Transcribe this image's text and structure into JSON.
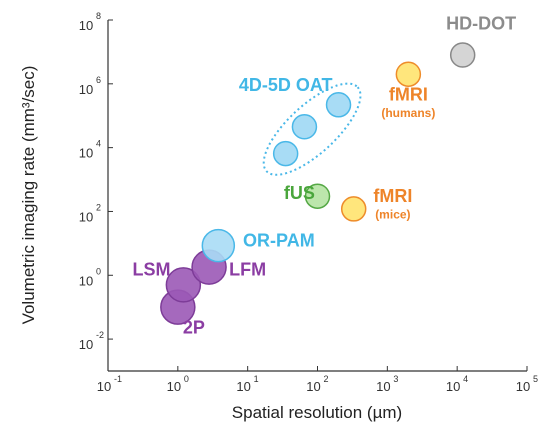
{
  "chart_data": {
    "type": "scatter",
    "scale": "log",
    "xlabel": "Spatial resolution (µm)",
    "ylabel": "Volumetric imaging rate (mm³/sec)",
    "xlim": [
      0.1,
      100000
    ],
    "ylim": [
      0.001,
      100000000
    ],
    "x_ticks": [
      {
        "base": "10",
        "exp": "-1",
        "value": 0.1
      },
      {
        "base": "10",
        "exp": "0",
        "value": 1
      },
      {
        "base": "10",
        "exp": "1",
        "value": 10
      },
      {
        "base": "10",
        "exp": "2",
        "value": 100
      },
      {
        "base": "10",
        "exp": "3",
        "value": 1000
      },
      {
        "base": "10",
        "exp": "4",
        "value": 10000
      },
      {
        "base": "10",
        "exp": "5",
        "value": 100000
      }
    ],
    "y_ticks": [
      {
        "base": "10",
        "exp": "-2",
        "value": 0.01
      },
      {
        "base": "10",
        "exp": "0",
        "value": 1
      },
      {
        "base": "10",
        "exp": "2",
        "value": 100
      },
      {
        "base": "10",
        "exp": "4",
        "value": 10000
      },
      {
        "base": "10",
        "exp": "6",
        "value": 1000000
      },
      {
        "base": "10",
        "exp": "8",
        "value": 100000000
      }
    ],
    "points": [
      {
        "id": "2p",
        "x": 1.0,
        "y": 0.1,
        "r": 17,
        "fill": "#9b59b6",
        "stroke": "#7d3c98"
      },
      {
        "id": "lsm",
        "x": 1.2,
        "y": 0.5,
        "r": 17,
        "fill": "#9b59b6",
        "stroke": "#7d3c98"
      },
      {
        "id": "lfm",
        "x": 2.8,
        "y": 1.8,
        "r": 17,
        "fill": "#9b59b6",
        "stroke": "#7d3c98"
      },
      {
        "id": "or-pam",
        "x": 3.8,
        "y": 8.5,
        "r": 16,
        "fill": "#a8dcf5",
        "stroke": "#4ab8e8"
      },
      {
        "id": "fus",
        "x": 100,
        "y": 300,
        "r": 12,
        "fill": "#b5e3a3",
        "stroke": "#55a845"
      },
      {
        "id": "fmri-mice",
        "x": 330,
        "y": 120,
        "r": 12,
        "fill": "#ffe36e",
        "stroke": "#ee8c2a"
      },
      {
        "id": "fmri-humans",
        "x": 2000,
        "y": 2000000,
        "r": 12,
        "fill": "#ffe36e",
        "stroke": "#ee8c2a"
      },
      {
        "id": "hd-dot",
        "x": 12000,
        "y": 8000000,
        "r": 12,
        "fill": "#d0d0d0",
        "stroke": "#888888"
      }
    ],
    "oat_points": [
      {
        "x": 35,
        "y": 6500
      },
      {
        "x": 65,
        "y": 45000
      },
      {
        "x": 200,
        "y": 220000
      }
    ],
    "oat_style": {
      "fill": "#a8dcf5",
      "stroke": "#4ab8e8",
      "r": 12
    },
    "annotations": [
      {
        "text": "HD-DOT",
        "x": 22000,
        "y": 50000000,
        "color": "#8c8c8c",
        "size": 18
      },
      {
        "text": "4D-5D OAT",
        "x": 35,
        "y": 600000,
        "color": "#41b7e6",
        "size": 18
      },
      {
        "text": "fMRI",
        "x": 2000,
        "y": 300000,
        "color": "#ee8429",
        "size": 18
      },
      {
        "text": "(humans)",
        "x": 2000,
        "y": 90000,
        "color": "#ee8429",
        "size": 12
      },
      {
        "text": "fUS",
        "x": 55,
        "y": 250,
        "color": "#4aa63c",
        "size": 18
      },
      {
        "text": "fMRI",
        "x": 1200,
        "y": 200,
        "color": "#ee8429",
        "size": 18
      },
      {
        "text": "(mice)",
        "x": 1200,
        "y": 60,
        "color": "#ee8429",
        "size": 12
      },
      {
        "text": "OR-PAM",
        "x": 28,
        "y": 8,
        "color": "#41b7e6",
        "size": 18
      },
      {
        "text": "LSM",
        "x": 0.42,
        "y": 1,
        "color": "#8b3da3",
        "size": 18
      },
      {
        "text": "LFM",
        "x": 10,
        "y": 1,
        "color": "#8b3da3",
        "size": 18
      },
      {
        "text": "2P",
        "x": 1.7,
        "y": 0.015,
        "color": "#8b3da3",
        "size": 18
      }
    ]
  }
}
